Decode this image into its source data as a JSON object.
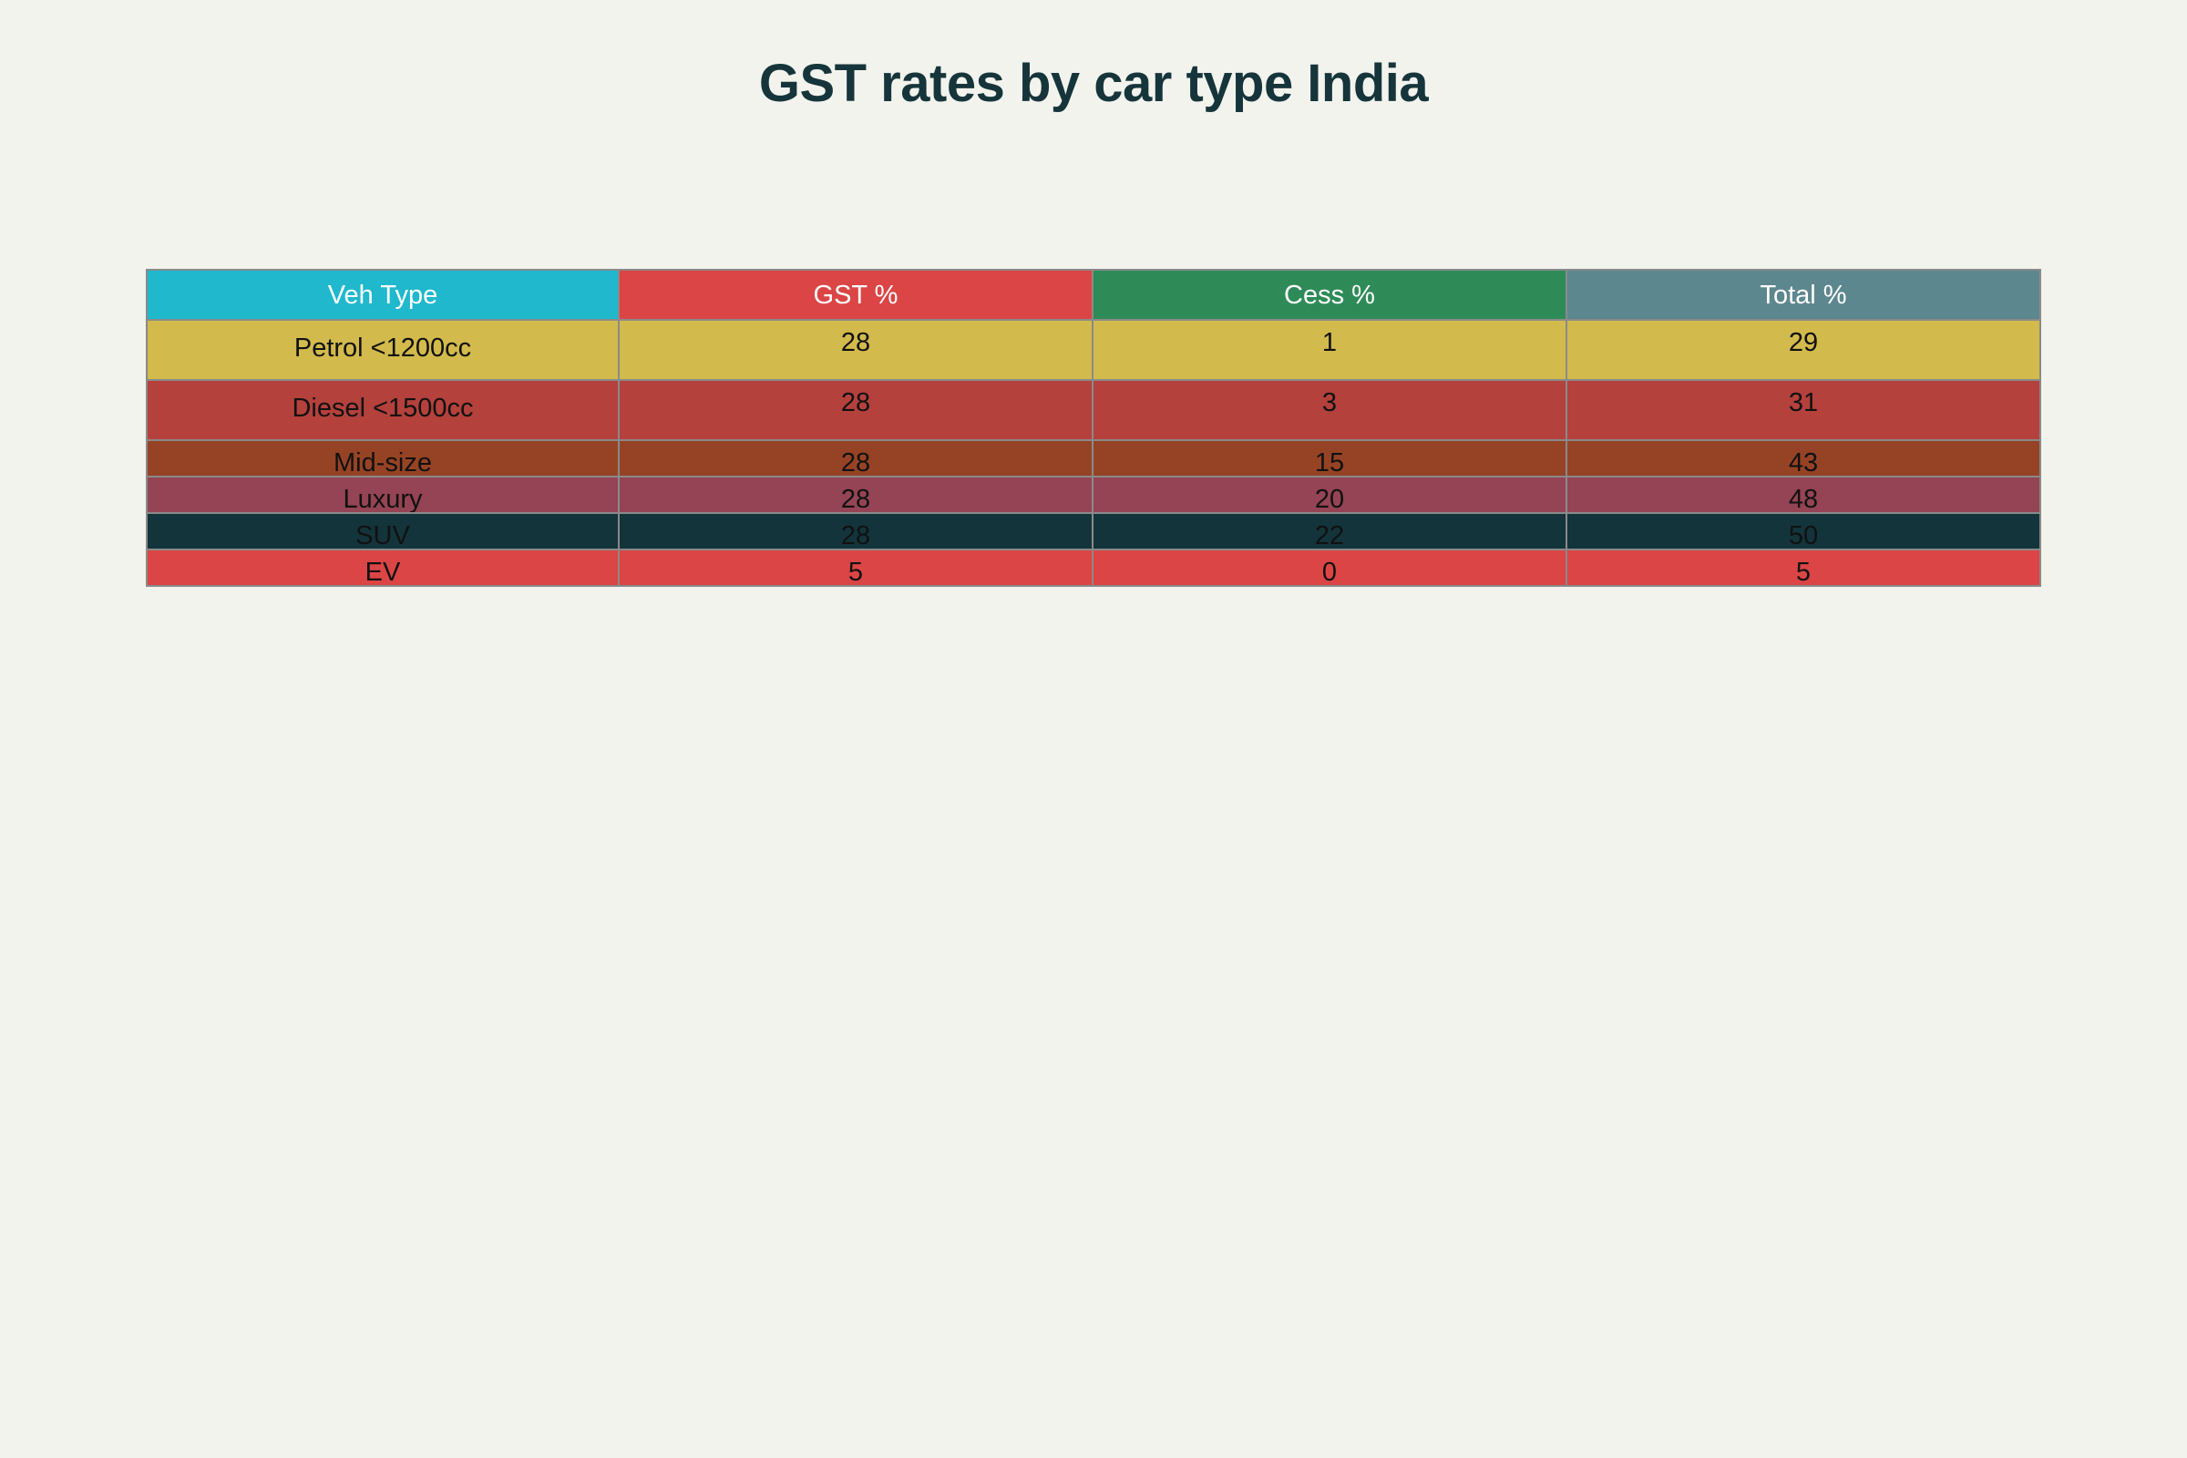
{
  "chart_data": {
    "type": "table",
    "title": "GST rates by car type India",
    "columns": [
      "Veh Type",
      "GST %",
      "Cess %",
      "Total %"
    ],
    "header_colors": [
      "#1fb8cd",
      "#db4545",
      "#2e8b57",
      "#5d878f"
    ],
    "rows": [
      {
        "values": [
          "Petrol <1200cc",
          "28",
          "1",
          "29"
        ],
        "color": "#d2ba4c"
      },
      {
        "values": [
          "Diesel <1500cc",
          "28",
          "3",
          "31"
        ],
        "color": "#b4413c"
      },
      {
        "values": [
          "Mid-size",
          "28",
          "15",
          "43"
        ],
        "color": "#944454"
      },
      {
        "values": [
          "Luxury",
          "28",
          "20",
          "48"
        ],
        "color": "#944454"
      },
      {
        "values": [
          "SUV",
          "28",
          "22",
          "50"
        ],
        "color": "#13343b"
      },
      {
        "values": [
          "EV",
          "5",
          "0",
          "5"
        ],
        "color": "#db4545"
      }
    ]
  }
}
